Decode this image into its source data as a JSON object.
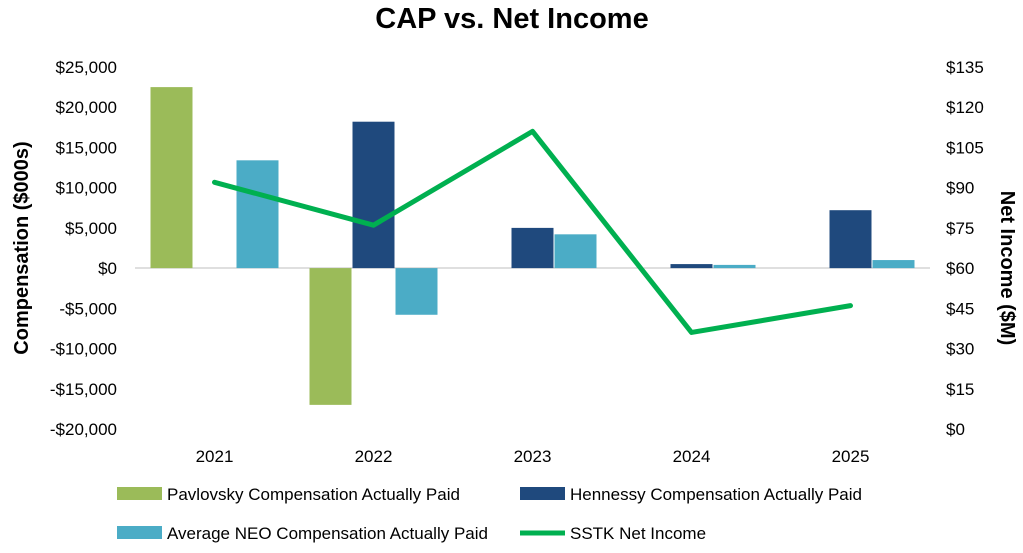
{
  "chart_data": {
    "type": "bar+line",
    "title": "CAP vs. Net Income",
    "categories": [
      "2021",
      "2022",
      "2023",
      "2024",
      "2025"
    ],
    "y_left": {
      "label": "Compensation ($000s)",
      "range": [
        -20000,
        25000
      ],
      "ticks": [
        25000,
        20000,
        15000,
        10000,
        5000,
        0,
        -5000,
        -10000,
        -15000,
        -20000
      ],
      "tick_labels": [
        "$25,000",
        "$20,000",
        "$15,000",
        "$10,000",
        "$5,000",
        "$0",
        "-$5,000",
        "-$10,000",
        "-$15,000",
        "-$20,000"
      ]
    },
    "y_right": {
      "label": "Net Income ($M)",
      "range": [
        0,
        135
      ],
      "ticks": [
        135,
        120,
        105,
        90,
        75,
        60,
        45,
        30,
        15,
        0
      ],
      "tick_labels": [
        "$135",
        "$120",
        "$105",
        "$90",
        "$75",
        "$60",
        "$45",
        "$30",
        "$15",
        "$0"
      ]
    },
    "series": [
      {
        "name": "Pavlovsky Compensation Actually Paid",
        "type": "bar",
        "axis": "left",
        "color": "#9bbb59",
        "values": [
          22500,
          -17000,
          null,
          null,
          null
        ]
      },
      {
        "name": "Hennessy Compensation Actually Paid",
        "type": "bar",
        "axis": "left",
        "color": "#1f497d",
        "values": [
          null,
          18200,
          5000,
          500,
          7200
        ]
      },
      {
        "name": "Average NEO Compensation Actually Paid",
        "type": "bar",
        "axis": "left",
        "color": "#4bacc6",
        "values": [
          13400,
          -5800,
          4200,
          400,
          1000
        ]
      },
      {
        "name": "SSTK Net Income",
        "type": "line",
        "axis": "right",
        "color": "#00b050",
        "values": [
          92,
          76,
          111,
          36,
          46
        ]
      }
    ],
    "legend": "bottom"
  }
}
